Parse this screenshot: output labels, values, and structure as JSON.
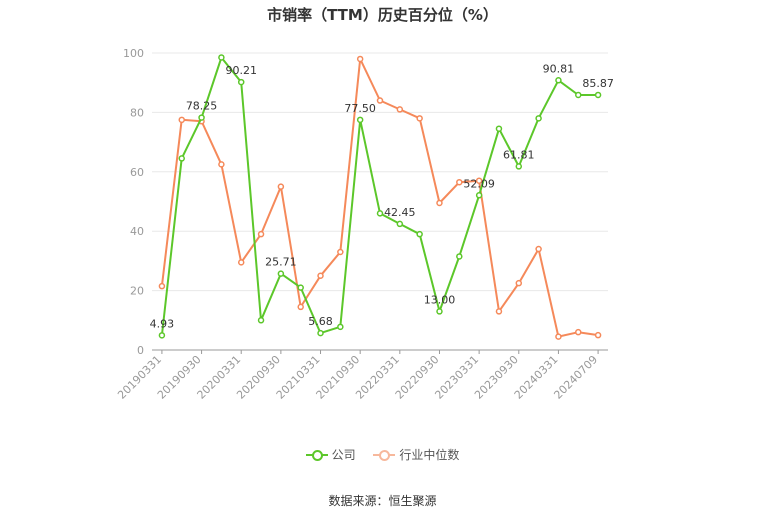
{
  "title": "市销率（TTM）历史百分位（%）",
  "source": "数据来源：恒生聚源",
  "colors": {
    "company": "#5cc72a",
    "industry": "#f5895a",
    "grid": "#e8e8e8",
    "axis": "#999999"
  },
  "chart_data": {
    "type": "line",
    "title": "市销率（TTM）历史百分位（%）",
    "xlabel": "",
    "ylabel": "",
    "ylim": [
      0,
      100
    ],
    "yticks": [
      0,
      20,
      40,
      60,
      80,
      100
    ],
    "grid": true,
    "legend_position": "bottom",
    "x": [
      "20190331",
      "20190630",
      "20190930",
      "20191231",
      "20200331",
      "20200630",
      "20200930",
      "20201231",
      "20210331",
      "20210630",
      "20210930",
      "20211231",
      "20220331",
      "20220630",
      "20220930",
      "20221231",
      "20230331",
      "20230630",
      "20230930",
      "20231231",
      "20240331",
      "20240630",
      "20240709"
    ],
    "xticks": [
      "20190331",
      "20190930",
      "20200331",
      "20200930",
      "20210331",
      "20210930",
      "20220331",
      "20220930",
      "20230331",
      "20230930",
      "20240331",
      "20240709"
    ],
    "series": [
      {
        "name": "公司",
        "values": [
          4.93,
          64.5,
          78.25,
          98.5,
          90.21,
          10.0,
          25.71,
          21.0,
          5.68,
          7.8,
          77.5,
          46.0,
          42.45,
          39.0,
          13.0,
          31.5,
          52.09,
          74.5,
          61.81,
          78.0,
          90.81,
          85.87,
          85.87
        ],
        "labels": {
          "0": "4.93",
          "2": "78.25",
          "4": "90.21",
          "6": "25.71",
          "8": "5.68",
          "10": "77.50",
          "12": "42.45",
          "14": "13.00",
          "16": "52.09",
          "18": "61.81",
          "20": "90.81",
          "22": "85.87"
        }
      },
      {
        "name": "行业中位数",
        "values": [
          21.5,
          77.5,
          77.0,
          62.5,
          29.5,
          39.0,
          55.0,
          14.5,
          25.0,
          33.0,
          98.0,
          84.0,
          81.0,
          78.0,
          49.5,
          56.5,
          57.0,
          13.0,
          22.5,
          34.0,
          4.5,
          6.0,
          5.0
        ]
      }
    ]
  }
}
